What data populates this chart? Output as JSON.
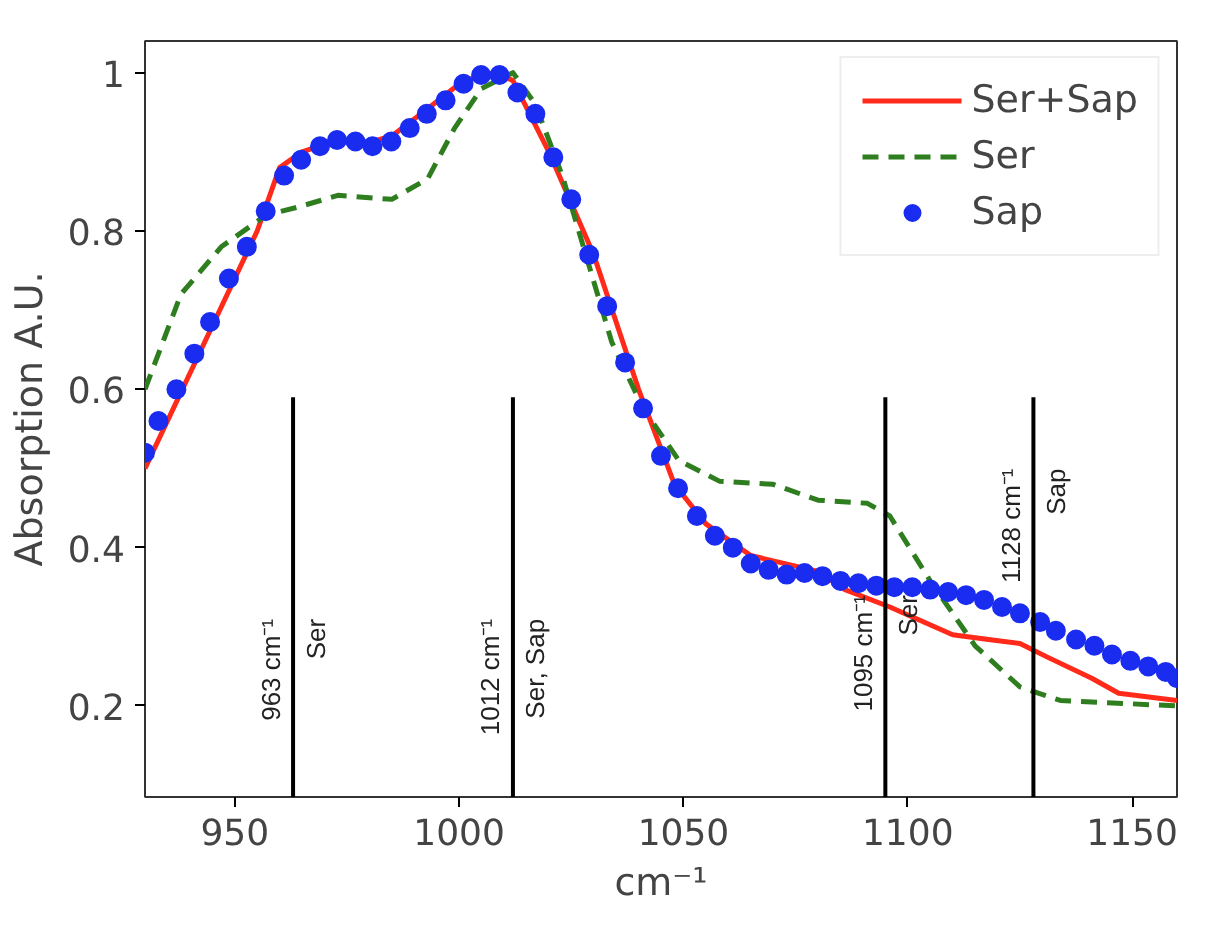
{
  "chart_data": {
    "type": "line",
    "xlabel": "cm⁻¹",
    "ylabel": "Absorption A.U.",
    "xlim": [
      930,
      1160
    ],
    "ylim": [
      0.085,
      1.04
    ],
    "xticks": [
      950,
      1000,
      1050,
      1100,
      1150
    ],
    "yticks": [
      0.2,
      0.4,
      0.6,
      0.8,
      1.0
    ],
    "grid": false,
    "legend": "top right",
    "series": [
      {
        "name": "Ser+Sap",
        "line_style": "solid",
        "color": "#ff2a1a",
        "x": [
          930,
          945,
          955,
          960,
          965,
          973,
          980,
          985,
          992,
          1001,
          1008,
          1012,
          1020,
          1030,
          1040,
          1048,
          1055,
          1065,
          1080,
          1086,
          1096,
          1110,
          1118,
          1125,
          1131,
          1141,
          1147,
          1160
        ],
        "values": [
          0.5,
          0.68,
          0.8,
          0.88,
          0.9,
          0.915,
          0.912,
          0.92,
          0.95,
          0.99,
          1.0,
          0.99,
          0.9,
          0.77,
          0.6,
          0.48,
          0.43,
          0.39,
          0.37,
          0.347,
          0.325,
          0.29,
          0.284,
          0.279,
          0.262,
          0.235,
          0.216,
          0.207
        ]
      },
      {
        "name": "Ser",
        "line_style": "dashed",
        "color": "#2e7d1e",
        "x": [
          930,
          938,
          947,
          957,
          964,
          973,
          985,
          993,
          999,
          1005,
          1012,
          1017,
          1023,
          1034,
          1041,
          1049,
          1058,
          1070,
          1080,
          1091,
          1096,
          1105,
          1115,
          1125,
          1134,
          1160
        ],
        "values": [
          0.6,
          0.72,
          0.78,
          0.82,
          0.83,
          0.845,
          0.84,
          0.866,
          0.93,
          0.98,
          1.0,
          0.96,
          0.87,
          0.66,
          0.576,
          0.51,
          0.484,
          0.48,
          0.46,
          0.456,
          0.44,
          0.358,
          0.276,
          0.224,
          0.207,
          0.2
        ]
      },
      {
        "name": "Sap",
        "type": "scatter",
        "marker": "circle",
        "color": "#1a2cf0",
        "x": [
          930,
          933,
          937,
          941,
          944.5,
          948.7,
          952.7,
          956.9,
          961,
          964.8,
          969,
          972.8,
          976.9,
          980.7,
          984.9,
          989,
          992.8,
          997,
          1001,
          1004.9,
          1009,
          1013,
          1017,
          1021,
          1025,
          1029,
          1033,
          1037,
          1041,
          1045,
          1048.8,
          1053,
          1057,
          1061,
          1065,
          1069,
          1073,
          1077,
          1081,
          1085,
          1089,
          1093,
          1097,
          1101,
          1105,
          1109,
          1113,
          1117,
          1121,
          1125,
          1129.5,
          1133,
          1137.5,
          1141.6,
          1145.5,
          1149.6,
          1153.6,
          1157.5,
          1160
        ],
        "values": [
          0.52,
          0.56,
          0.6,
          0.645,
          0.685,
          0.74,
          0.78,
          0.825,
          0.87,
          0.89,
          0.907,
          0.915,
          0.913,
          0.907,
          0.913,
          0.93,
          0.948,
          0.965,
          0.986,
          0.997,
          0.997,
          0.975,
          0.948,
          0.893,
          0.84,
          0.77,
          0.705,
          0.634,
          0.576,
          0.516,
          0.475,
          0.44,
          0.415,
          0.4,
          0.38,
          0.372,
          0.366,
          0.368,
          0.364,
          0.358,
          0.355,
          0.352,
          0.35,
          0.35,
          0.347,
          0.344,
          0.34,
          0.334,
          0.325,
          0.317,
          0.306,
          0.295,
          0.284,
          0.276,
          0.265,
          0.257,
          0.25,
          0.243,
          0.235
        ]
      },
      {
        "type": "line",
        "line_style": "solid",
        "color": "#000000",
        "x": [
          963,
          963
        ],
        "values": [
          0.085,
          0.59
        ]
      },
      {
        "type": "line",
        "line_style": "solid",
        "color": "#000000",
        "x": [
          1012,
          1012
        ],
        "values": [
          0.085,
          0.59
        ]
      },
      {
        "type": "line",
        "line_style": "solid",
        "color": "#000000",
        "x": [
          1095,
          1095
        ],
        "values": [
          0.085,
          0.59
        ]
      },
      {
        "type": "line",
        "line_style": "solid",
        "color": "#000000",
        "x": [
          1128,
          1128
        ],
        "values": [
          0.085,
          0.59
        ]
      }
    ],
    "annotations": [
      {
        "text": "963 cm⁻¹\nSer",
        "x": 963,
        "y": 0.31
      },
      {
        "text": "1012 cm⁻¹\nSer, Sap",
        "x": 1012,
        "y": 0.31
      },
      {
        "text": "1095 cm⁻¹\nSer",
        "x": 1095,
        "y": 0.34
      },
      {
        "text": "1128 cm⁻¹\nSap",
        "x": 1128,
        "y": 0.5
      }
    ]
  }
}
